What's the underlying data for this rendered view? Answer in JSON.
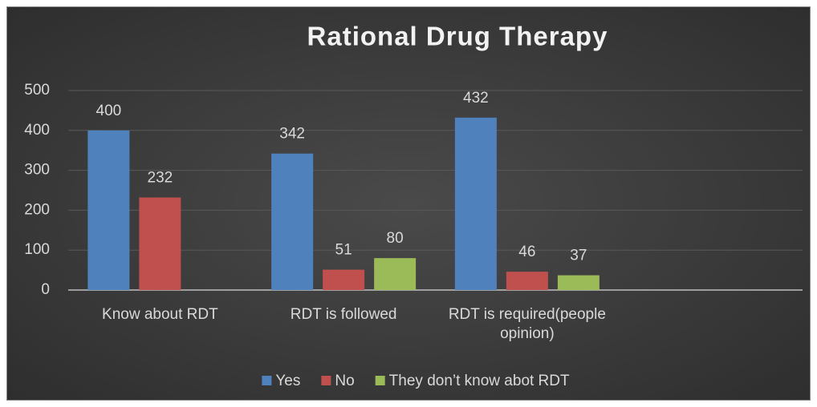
{
  "chart_data": {
    "type": "bar",
    "title": "Rational Drug Therapy",
    "categories": [
      "Know about RDT",
      "RDT is followed",
      "RDT is required(people opinion)",
      null
    ],
    "series": [
      {
        "name": "Yes",
        "color": "#4f81bd",
        "values": [
          400,
          342,
          432,
          null
        ]
      },
      {
        "name": "No",
        "color": "#c0504d",
        "values": [
          232,
          51,
          46,
          null
        ]
      },
      {
        "name": "They don’t know abot RDT",
        "color": "#9bbb59",
        "values": [
          null,
          80,
          37,
          null
        ]
      }
    ],
    "ylim": [
      0,
      500
    ],
    "yticks": [
      0,
      100,
      200,
      300,
      400,
      500
    ],
    "grid": true,
    "legend": "bottom"
  }
}
